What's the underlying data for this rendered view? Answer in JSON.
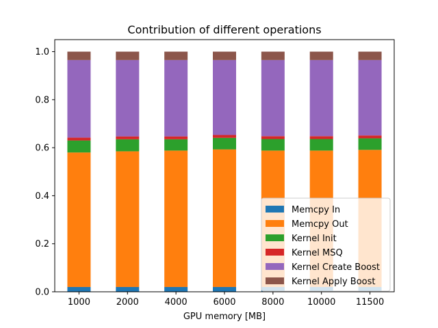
{
  "chart_data": {
    "type": "bar",
    "stacked": true,
    "title": "Contribution of different operations",
    "xlabel": "GPU memory [MB]",
    "ylabel": "",
    "ylim": [
      0,
      1.05
    ],
    "yticks": [
      "0.0",
      "0.2",
      "0.4",
      "0.6",
      "0.8",
      "1.0"
    ],
    "grid": false,
    "legend_position": "lower-right",
    "categories": [
      "1000",
      "2000",
      "4000",
      "6000",
      "8000",
      "10000",
      "11500"
    ],
    "series": [
      {
        "name": "Memcpy In",
        "color": "#1f77b4",
        "values": [
          0.02,
          0.02,
          0.02,
          0.02,
          0.02,
          0.02,
          0.02
        ]
      },
      {
        "name": "Memcpy Out",
        "color": "#ff7f0e",
        "values": [
          0.56,
          0.565,
          0.568,
          0.573,
          0.568,
          0.568,
          0.571
        ]
      },
      {
        "name": "Kernel Init",
        "color": "#2ca02c",
        "values": [
          0.05,
          0.05,
          0.047,
          0.048,
          0.048,
          0.048,
          0.048
        ]
      },
      {
        "name": "Kernel MSQ",
        "color": "#d62728",
        "values": [
          0.012,
          0.012,
          0.012,
          0.012,
          0.012,
          0.012,
          0.012
        ]
      },
      {
        "name": "Kernel Create Boost",
        "color": "#9467bd",
        "values": [
          0.323,
          0.318,
          0.318,
          0.312,
          0.317,
          0.317,
          0.314
        ]
      },
      {
        "name": "Kernel Apply Boost",
        "color": "#8c564b",
        "values": [
          0.035,
          0.035,
          0.035,
          0.035,
          0.035,
          0.035,
          0.035
        ]
      }
    ]
  }
}
